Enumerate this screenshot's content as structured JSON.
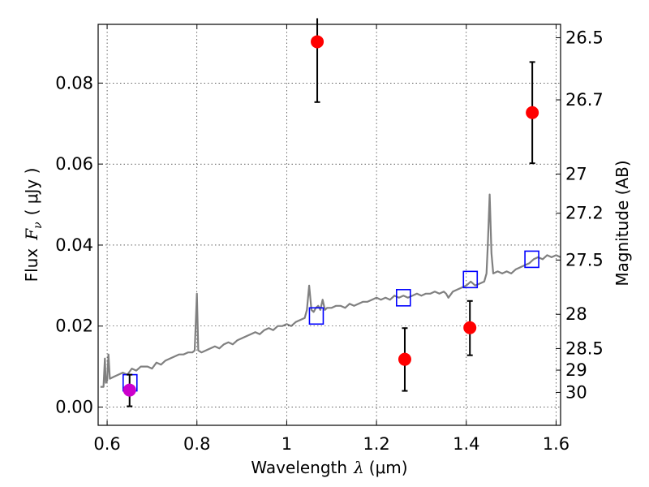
{
  "chart_data": {
    "type": "scatter",
    "xlabel": "Wavelength",
    "xlabel_math": "λ",
    "xlabel_unit": "(μm)",
    "ylabel": "Flux",
    "ylabel_math": "F",
    "ylabel_sub": "ν",
    "ylabel_unit": "( μJy )",
    "y2label": "Magnitude (AB)",
    "xlim": [
      0.58,
      1.61
    ],
    "ylim": [
      -0.0045,
      0.0945
    ],
    "grid": true,
    "x_ticks": [
      {
        "v": 0.6,
        "label": "0.6"
      },
      {
        "v": 0.8,
        "label": "0.8"
      },
      {
        "v": 1.0,
        "label": "1"
      },
      {
        "v": 1.2,
        "label": "1.2"
      },
      {
        "v": 1.4,
        "label": "1.4"
      },
      {
        "v": 1.6,
        "label": "1.6"
      }
    ],
    "y_ticks": [
      {
        "v": 0.0,
        "label": "0.00"
      },
      {
        "v": 0.02,
        "label": "0.02"
      },
      {
        "v": 0.04,
        "label": "0.04"
      },
      {
        "v": 0.06,
        "label": "0.06"
      },
      {
        "v": 0.08,
        "label": "0.08"
      }
    ],
    "mag_ticks": [
      {
        "mag": 26.5,
        "label": "26.5"
      },
      {
        "mag": 26.7,
        "label": "26.7"
      },
      {
        "mag": 27,
        "label": "27"
      },
      {
        "mag": 27.2,
        "label": "27.2"
      },
      {
        "mag": 27.5,
        "label": "27.5"
      },
      {
        "mag": 28,
        "label": "28"
      },
      {
        "mag": 28.5,
        "label": "28.5"
      },
      {
        "mag": 29,
        "label": "29"
      },
      {
        "mag": 30,
        "label": "30"
      }
    ],
    "series": [
      {
        "kind": "line",
        "color": "#808080",
        "points": [
          [
            0.585,
            0.005
          ],
          [
            0.592,
            0.005
          ],
          [
            0.595,
            0.012
          ],
          [
            0.597,
            0.006
          ],
          [
            0.6,
            0.0065
          ],
          [
            0.603,
            0.013
          ],
          [
            0.606,
            0.007
          ],
          [
            0.615,
            0.0075
          ],
          [
            0.625,
            0.008
          ],
          [
            0.635,
            0.0085
          ],
          [
            0.645,
            0.008
          ],
          [
            0.655,
            0.0095
          ],
          [
            0.665,
            0.009
          ],
          [
            0.675,
            0.01
          ],
          [
            0.69,
            0.01
          ],
          [
            0.7,
            0.0095
          ],
          [
            0.71,
            0.011
          ],
          [
            0.72,
            0.0105
          ],
          [
            0.73,
            0.0115
          ],
          [
            0.74,
            0.012
          ],
          [
            0.75,
            0.0125
          ],
          [
            0.76,
            0.013
          ],
          [
            0.77,
            0.013
          ],
          [
            0.78,
            0.0135
          ],
          [
            0.79,
            0.0135
          ],
          [
            0.795,
            0.014
          ],
          [
            0.8,
            0.028
          ],
          [
            0.803,
            0.014
          ],
          [
            0.81,
            0.0135
          ],
          [
            0.82,
            0.014
          ],
          [
            0.83,
            0.0145
          ],
          [
            0.84,
            0.015
          ],
          [
            0.85,
            0.0145
          ],
          [
            0.86,
            0.0155
          ],
          [
            0.87,
            0.016
          ],
          [
            0.88,
            0.0155
          ],
          [
            0.89,
            0.0165
          ],
          [
            0.9,
            0.017
          ],
          [
            0.91,
            0.0175
          ],
          [
            0.92,
            0.018
          ],
          [
            0.93,
            0.0185
          ],
          [
            0.94,
            0.018
          ],
          [
            0.95,
            0.019
          ],
          [
            0.96,
            0.0195
          ],
          [
            0.97,
            0.019
          ],
          [
            0.98,
            0.02
          ],
          [
            0.99,
            0.02
          ],
          [
            1.0,
            0.0205
          ],
          [
            1.01,
            0.02
          ],
          [
            1.02,
            0.021
          ],
          [
            1.03,
            0.0215
          ],
          [
            1.04,
            0.022
          ],
          [
            1.045,
            0.024
          ],
          [
            1.05,
            0.03
          ],
          [
            1.055,
            0.024
          ],
          [
            1.06,
            0.0235
          ],
          [
            1.065,
            0.0245
          ],
          [
            1.07,
            0.025
          ],
          [
            1.075,
            0.024
          ],
          [
            1.08,
            0.0265
          ],
          [
            1.085,
            0.024
          ],
          [
            1.09,
            0.0245
          ],
          [
            1.1,
            0.0245
          ],
          [
            1.11,
            0.025
          ],
          [
            1.12,
            0.025
          ],
          [
            1.13,
            0.0245
          ],
          [
            1.14,
            0.0255
          ],
          [
            1.15,
            0.025
          ],
          [
            1.16,
            0.0255
          ],
          [
            1.17,
            0.026
          ],
          [
            1.18,
            0.026
          ],
          [
            1.19,
            0.0265
          ],
          [
            1.2,
            0.027
          ],
          [
            1.21,
            0.0265
          ],
          [
            1.22,
            0.027
          ],
          [
            1.23,
            0.0265
          ],
          [
            1.24,
            0.0275
          ],
          [
            1.25,
            0.027
          ],
          [
            1.26,
            0.0275
          ],
          [
            1.27,
            0.027
          ],
          [
            1.28,
            0.0275
          ],
          [
            1.29,
            0.028
          ],
          [
            1.3,
            0.0275
          ],
          [
            1.31,
            0.028
          ],
          [
            1.32,
            0.028
          ],
          [
            1.33,
            0.0285
          ],
          [
            1.34,
            0.028
          ],
          [
            1.35,
            0.0285
          ],
          [
            1.355,
            0.028
          ],
          [
            1.36,
            0.027
          ],
          [
            1.37,
            0.0285
          ],
          [
            1.38,
            0.029
          ],
          [
            1.39,
            0.0295
          ],
          [
            1.4,
            0.03
          ],
          [
            1.41,
            0.031
          ],
          [
            1.42,
            0.03
          ],
          [
            1.43,
            0.0305
          ],
          [
            1.44,
            0.031
          ],
          [
            1.445,
            0.033
          ],
          [
            1.448,
            0.04
          ],
          [
            1.452,
            0.0525
          ],
          [
            1.456,
            0.038
          ],
          [
            1.46,
            0.033
          ],
          [
            1.47,
            0.0335
          ],
          [
            1.48,
            0.033
          ],
          [
            1.49,
            0.0335
          ],
          [
            1.5,
            0.033
          ],
          [
            1.51,
            0.034
          ],
          [
            1.52,
            0.0345
          ],
          [
            1.53,
            0.035
          ],
          [
            1.54,
            0.0355
          ],
          [
            1.55,
            0.0365
          ],
          [
            1.56,
            0.037
          ],
          [
            1.57,
            0.0365
          ],
          [
            1.58,
            0.0375
          ],
          [
            1.59,
            0.037
          ],
          [
            1.6,
            0.0375
          ],
          [
            1.61,
            0.037
          ]
        ]
      },
      {
        "kind": "squares",
        "color": "#0000ff",
        "points": [
          [
            0.651,
            0.006
          ],
          [
            1.066,
            0.0225
          ],
          [
            1.26,
            0.027
          ],
          [
            1.409,
            0.0315
          ],
          [
            1.546,
            0.0365
          ]
        ]
      },
      {
        "kind": "points_with_errors",
        "color": "#ff0000",
        "points": [
          {
            "x": 1.068,
            "y": 0.0902,
            "lo": 0.0753,
            "hi": 0.096
          },
          {
            "x": 1.547,
            "y": 0.0727,
            "lo": 0.0602,
            "hi": 0.0852
          },
          {
            "x": 1.263,
            "y": 0.0118,
            "lo": 0.004,
            "hi": 0.0195
          },
          {
            "x": 1.408,
            "y": 0.0196,
            "lo": 0.0128,
            "hi": 0.0262
          }
        ]
      },
      {
        "kind": "points_with_errors",
        "color": "#cc00cc",
        "points": [
          {
            "x": 0.65,
            "y": 0.0042,
            "lo": 0.0002,
            "hi": 0.008
          }
        ]
      }
    ]
  }
}
